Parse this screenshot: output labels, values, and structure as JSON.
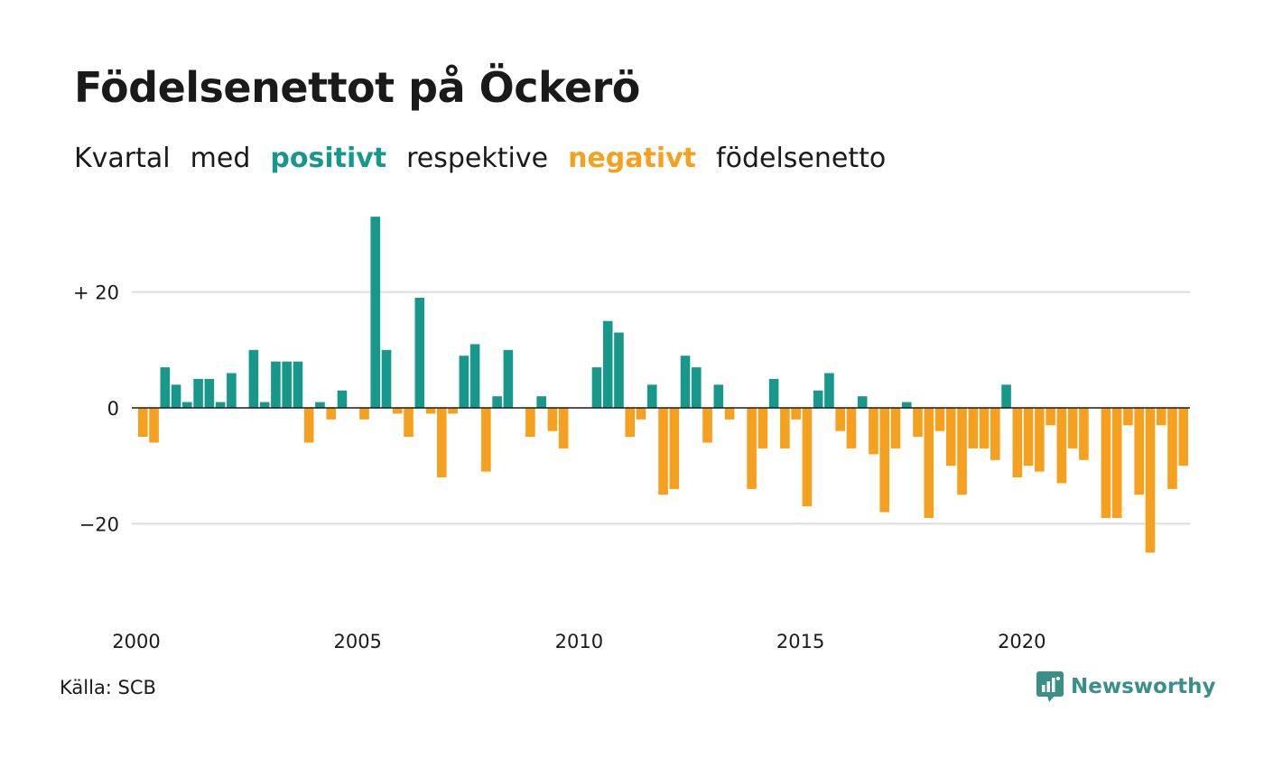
{
  "title": "Födelsenettot på Öckerö",
  "subtitle": {
    "w1": "Kvartal",
    "w2": "med",
    "positive": "positivt",
    "w3": "respektive",
    "negative": "negativt",
    "w4": "födelsenetto"
  },
  "source": "Källa: SCB",
  "brand": {
    "name": "Newsworthy",
    "icon": "newsworthy-logo-icon"
  },
  "colors": {
    "positive": "#17988a",
    "negative": "#f5a01f",
    "grid": "#dddddd",
    "zero": "#1a1a1a",
    "brand": "#3a8f86"
  },
  "chart_data": {
    "type": "bar",
    "x_start": "2000 Q1",
    "x_ticks": [
      "2000",
      "2005",
      "2010",
      "2015",
      "2020"
    ],
    "y_ticks": [
      "+ 20",
      "0",
      "−20"
    ],
    "y_tick_values": [
      20,
      0,
      -20
    ],
    "ylim": [
      -30,
      35
    ],
    "grid": true,
    "values": [
      -5,
      -6,
      7,
      4,
      1,
      5,
      5,
      1,
      6,
      0,
      10,
      1,
      8,
      8,
      8,
      -6,
      1,
      -2,
      3,
      0,
      -2,
      33,
      10,
      -1,
      -5,
      19,
      -1,
      -12,
      -1,
      9,
      11,
      -11,
      2,
      10,
      0,
      -5,
      2,
      -4,
      -7,
      0,
      0,
      7,
      15,
      13,
      -5,
      -2,
      4,
      -15,
      -14,
      9,
      7,
      -6,
      4,
      -2,
      0,
      -14,
      -7,
      5,
      -7,
      -2,
      -17,
      3,
      6,
      -4,
      -7,
      2,
      -8,
      -18,
      -7,
      1,
      -5,
      -19,
      -4,
      -10,
      -15,
      -7,
      -7,
      -9,
      4,
      -12,
      -10,
      -11,
      -3,
      -13,
      -7,
      -9,
      0,
      -19,
      -19,
      -3,
      -15,
      -25,
      -3,
      -14,
      -10
    ]
  }
}
